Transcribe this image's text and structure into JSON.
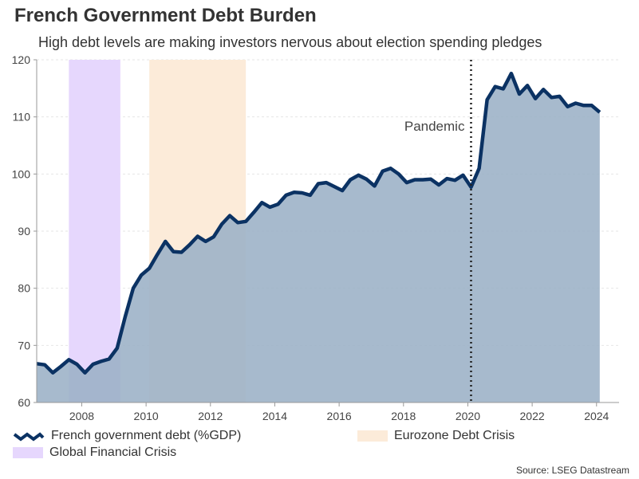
{
  "header": {
    "title": "French Government Debt Burden",
    "subtitle": "High debt levels are making investors nervous about election spending pledges"
  },
  "source": "Source: LSEG Datastream",
  "colors": {
    "line": "#0b3263",
    "area": "#9bb1c6",
    "gfc_band": "#e6d7fd",
    "eurozone_band": "#fcebd9",
    "grid": "#e6e6e6",
    "axis": "#999999"
  },
  "chart_data": {
    "type": "area",
    "title": "French Government Debt Burden",
    "xlabel": "",
    "ylabel": "",
    "xlim": [
      2006.6,
      2024.7
    ],
    "ylim": [
      60,
      120
    ],
    "x_ticks": [
      2008,
      2010,
      2012,
      2014,
      2016,
      2018,
      2020,
      2022,
      2024
    ],
    "y_ticks": [
      60,
      70,
      80,
      90,
      100,
      110,
      120
    ],
    "grid": "horizontal",
    "series": [
      {
        "name": "French government debt (%GDP)",
        "x": [
          2006.6,
          2006.85,
          2007.1,
          2007.35,
          2007.6,
          2007.85,
          2008.1,
          2008.35,
          2008.6,
          2008.85,
          2009.1,
          2009.35,
          2009.6,
          2009.85,
          2010.1,
          2010.35,
          2010.6,
          2010.85,
          2011.1,
          2011.35,
          2011.6,
          2011.85,
          2012.1,
          2012.35,
          2012.6,
          2012.85,
          2013.1,
          2013.35,
          2013.6,
          2013.85,
          2014.1,
          2014.35,
          2014.6,
          2014.85,
          2015.1,
          2015.35,
          2015.6,
          2015.85,
          2016.1,
          2016.35,
          2016.6,
          2016.85,
          2017.1,
          2017.35,
          2017.6,
          2017.85,
          2018.1,
          2018.35,
          2018.6,
          2018.85,
          2019.1,
          2019.35,
          2019.6,
          2019.85,
          2020.1,
          2020.35,
          2020.6,
          2020.85,
          2021.1,
          2021.35,
          2021.6,
          2021.85,
          2022.1,
          2022.35,
          2022.6,
          2022.85,
          2023.1,
          2023.35,
          2023.6,
          2023.85,
          2024.1
        ],
        "values": [
          66.8,
          66.6,
          65.2,
          66.3,
          67.5,
          66.7,
          65.2,
          66.7,
          67.2,
          67.6,
          69.5,
          75.0,
          80.0,
          82.3,
          83.5,
          85.9,
          88.2,
          86.4,
          86.3,
          87.6,
          89.1,
          88.2,
          89.0,
          91.2,
          92.7,
          91.5,
          91.7,
          93.3,
          95.0,
          94.2,
          94.7,
          96.3,
          96.8,
          96.7,
          96.3,
          98.3,
          98.5,
          97.8,
          97.1,
          99.0,
          99.8,
          99.1,
          97.9,
          100.5,
          101.0,
          100.0,
          98.5,
          99.0,
          99.0,
          99.1,
          98.1,
          99.2,
          98.9,
          99.8,
          97.7,
          101.0,
          113.0,
          115.3,
          114.9,
          117.6,
          114.0,
          115.5,
          113.2,
          114.8,
          113.4,
          113.6,
          111.8,
          112.4,
          112.0,
          112.0,
          110.8
        ]
      }
    ],
    "shaded_periods": [
      {
        "name": "Global Financial Crisis",
        "start": 2007.6,
        "end": 2009.2
      },
      {
        "name": "Eurozone Debt Crisis",
        "start": 2010.1,
        "end": 2013.1
      }
    ],
    "annotations": [
      {
        "text": "Pandemic",
        "x": 2020.1
      }
    ],
    "legend": {
      "position": "bottom",
      "items": [
        {
          "label": "French government debt (%GDP)",
          "kind": "line"
        },
        {
          "label": "Eurozone Debt Crisis",
          "kind": "eurozone"
        },
        {
          "label": "Global Financial Crisis",
          "kind": "gfc"
        }
      ]
    }
  }
}
